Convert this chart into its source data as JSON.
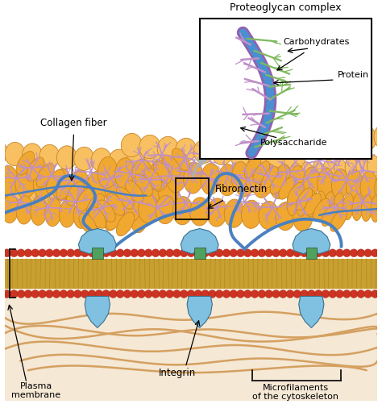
{
  "labels": {
    "proteoglycan_complex": "Proteoglycan complex",
    "carbohydrates": "Carbohydrates",
    "protein": "Protein",
    "polysaccharide": "Polysaccharide",
    "collagen_fiber": "Collagen fiber",
    "fibronectin": "Fibronectin",
    "integrin": "Integrin",
    "plasma_membrane": "Plasma\nmembrane",
    "microfilaments": "Microfilaments\nof the cytoskeleton"
  },
  "colors": {
    "background": "#ffffff",
    "collagen_main": "#f0a830",
    "collagen_edge": "#c8842a",
    "collagen_highlight": "#f5c060",
    "fibronectin_blue": "#4a80c0",
    "proteoglycan_purple": "#c090c8",
    "integrin_blue": "#80c0e0",
    "integrin_edge": "#3a7090",
    "integrin_green": "#50a060",
    "membrane_red": "#cc3322",
    "membrane_red_edge": "#aa2211",
    "membrane_body": "#c09840",
    "membrane_tails": "#c8a030",
    "cytoplasm": "#f5e8d5",
    "microfilaments": "#d4a060",
    "text": "#000000",
    "arrow_gray": "#bbbbbb",
    "inset_protein_blue": "#4a90d0",
    "inset_protein_purple": "#9060b0",
    "inset_carb_green": "#80b860",
    "inset_poly_purple": "#c090c8"
  }
}
